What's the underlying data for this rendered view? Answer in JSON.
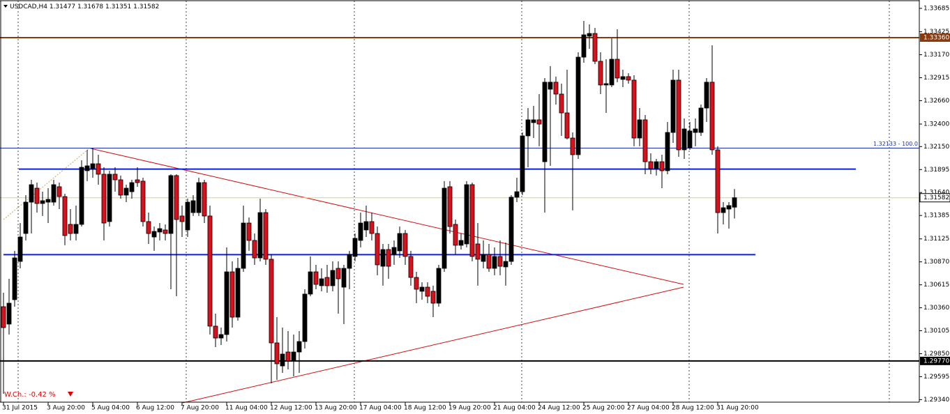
{
  "chart_data": {
    "type": "candlestick",
    "title": "USDCAD,H4",
    "annotation": "W.Ch.: -0.42 %",
    "ylim": [
      1.29312,
      1.3377
    ],
    "yticks": [
      1.33685,
      1.33425,
      {
        "value": 1.3317,
        "label": "1.33170"
      },
      1.32915,
      {
        "value": 1.3266,
        "label": "1.32660"
      },
      {
        "value": 1.324,
        "label": "1.32400"
      },
      {
        "value": 1.3215,
        "label": "1.32150"
      },
      1.31895,
      {
        "value": 1.3164,
        "label": "1.31640"
      },
      1.31385,
      1.31125,
      {
        "value": 1.3087,
        "label": "1.30870"
      },
      1.30615,
      {
        "value": 1.3036,
        "label": "1.30360"
      },
      1.30105,
      {
        "value": 1.2985,
        "label": "1.29850"
      },
      1.29595,
      {
        "value": 1.2934,
        "label": "1.29340"
      }
    ],
    "bull_color": "#000000",
    "bear_color": "#d8121c",
    "categories": [
      "31 Jul 2015",
      null,
      null,
      null,
      null,
      null,
      null,
      null,
      "3 Aug 20:00",
      null,
      null,
      null,
      null,
      null,
      null,
      null,
      "5 Aug 04:00",
      null,
      null,
      null,
      null,
      null,
      null,
      null,
      "6 Aug 12:00",
      null,
      null,
      null,
      null,
      null,
      null,
      null,
      "7 Aug 20:00",
      null,
      null,
      null,
      null,
      null,
      null,
      null,
      "11 Aug 04:00",
      null,
      null,
      null,
      null,
      null,
      null,
      null,
      "12 Aug 12:00",
      null,
      null,
      null,
      null,
      null,
      null,
      null,
      "13 Aug 20:00",
      null,
      null,
      null,
      null,
      null,
      null,
      null,
      "17 Aug 04:00",
      null,
      null,
      null,
      null,
      null,
      null,
      null,
      "18 Aug 12:00",
      null,
      null,
      null,
      null,
      null,
      null,
      null,
      "19 Aug 20:00",
      null,
      null,
      null,
      null,
      null,
      null,
      null,
      "21 Aug 04:00",
      null,
      null,
      null,
      null,
      null,
      null,
      null,
      "24 Aug 12:00",
      null,
      null,
      null,
      null,
      null,
      null,
      null,
      "25 Aug 20:00",
      null,
      null,
      null,
      null,
      null,
      null,
      null,
      "27 Aug 04:00",
      null,
      null,
      null,
      null,
      null,
      null,
      null,
      "28 Aug 12:00",
      null,
      null,
      null,
      null,
      null,
      null,
      null,
      "31 Aug 20:00",
      null,
      null,
      null
    ],
    "ohlc": [
      [
        1.30372,
        1.30527,
        1.29405,
        1.3014
      ],
      [
        1.30179,
        1.30682,
        1.30063,
        1.30411
      ],
      [
        1.3045,
        1.30992,
        1.30372,
        1.30914
      ],
      [
        1.30875,
        1.31301,
        1.30798,
        1.31146
      ],
      [
        1.31185,
        1.31611,
        1.31108,
        1.31533
      ],
      [
        1.31533,
        1.31781,
        1.31185,
        1.31727
      ],
      [
        1.31688,
        1.3175,
        1.31417,
        1.31518
      ],
      [
        1.31518,
        1.31649,
        1.31379,
        1.31549
      ],
      [
        1.31533,
        1.31688,
        1.31301,
        1.31564
      ],
      [
        1.31533,
        1.31781,
        1.31495,
        1.31727
      ],
      [
        1.31704,
        1.3175,
        1.31456,
        1.31595
      ],
      [
        1.31595,
        1.31626,
        1.31054,
        1.31162
      ],
      [
        1.31286,
        1.31456,
        1.31108,
        1.31185
      ],
      [
        1.31185,
        1.31495,
        1.31108,
        1.31286
      ],
      [
        1.31286,
        1.31998,
        1.31262,
        1.3192
      ],
      [
        1.31882,
        1.32114,
        1.31766,
        1.31936
      ],
      [
        1.31905,
        1.32137,
        1.31804,
        1.31959
      ],
      [
        1.31959,
        1.3206,
        1.31727,
        1.31843
      ],
      [
        1.31843,
        1.3192,
        1.31108,
        1.31301
      ],
      [
        1.31317,
        1.31882,
        1.31262,
        1.31843
      ],
      [
        1.31843,
        1.3192,
        1.31649,
        1.31781
      ],
      [
        1.31781,
        1.31828,
        1.31572,
        1.31611
      ],
      [
        1.31611,
        1.31727,
        1.31533,
        1.31688
      ],
      [
        1.31649,
        1.31781,
        1.31572,
        1.3175
      ],
      [
        1.31781,
        1.3192,
        1.31704,
        1.3175
      ],
      [
        1.31766,
        1.31804,
        1.31262,
        1.31317
      ],
      [
        1.31317,
        1.31417,
        1.31069,
        1.31185
      ],
      [
        1.31146,
        1.31262,
        1.30992,
        1.31208
      ],
      [
        1.31201,
        1.31301,
        1.31108,
        1.31239
      ],
      [
        1.31224,
        1.31286,
        1.31108,
        1.31185
      ],
      [
        1.31185,
        1.31843,
        1.30566,
        1.31828
      ],
      [
        1.31828,
        1.31843,
        1.30488,
        1.3134
      ],
      [
        1.31379,
        1.31495,
        1.31146,
        1.31317
      ],
      [
        1.31224,
        1.31572,
        1.31146,
        1.31533
      ],
      [
        1.31417,
        1.31611,
        1.31379,
        1.31549
      ],
      [
        1.31417,
        1.31804,
        1.31379,
        1.3175
      ],
      [
        1.3175,
        1.31781,
        1.31301,
        1.31379
      ],
      [
        1.31379,
        1.31495,
        1.30063,
        1.30156
      ],
      [
        1.30156,
        1.30295,
        1.29923,
        1.30024
      ],
      [
        1.30024,
        1.3014,
        1.29947,
        1.30063
      ],
      [
        1.30063,
        1.3103,
        1.29985,
        1.30759
      ],
      [
        1.30759,
        1.30875,
        1.3014,
        1.30256
      ],
      [
        1.30256,
        1.30914,
        1.30218,
        1.30798
      ],
      [
        1.30798,
        1.31495,
        1.30759,
        1.31301
      ],
      [
        1.31301,
        1.31363,
        1.30992,
        1.31108
      ],
      [
        1.31108,
        1.31185,
        1.30837,
        1.30914
      ],
      [
        1.30914,
        1.31572,
        1.30875,
        1.31417
      ],
      [
        1.31417,
        1.31456,
        1.30837,
        1.30899
      ],
      [
        1.30899,
        1.30953,
        1.29521,
        1.2997
      ],
      [
        1.2997,
        1.30256,
        1.2956,
        1.29738
      ],
      [
        1.29714,
        1.3014,
        1.29637,
        1.29846
      ],
      [
        1.29869,
        1.30101,
        1.29676,
        1.29769
      ],
      [
        1.29769,
        1.30063,
        1.29598,
        1.29869
      ],
      [
        1.29869,
        1.30101,
        1.29637,
        1.29985
      ],
      [
        1.29985,
        1.30566,
        1.29908,
        1.30512
      ],
      [
        1.30512,
        1.3093,
        1.30488,
        1.30759
      ],
      [
        1.30759,
        1.30837,
        1.30566,
        1.3062
      ],
      [
        1.30605,
        1.30798,
        1.30543,
        1.30682
      ],
      [
        1.30697,
        1.30837,
        1.30527,
        1.30605
      ],
      [
        1.30605,
        1.30875,
        1.30543,
        1.30775
      ],
      [
        1.30798,
        1.30875,
        1.30295,
        1.30682
      ],
      [
        1.30589,
        1.30837,
        1.30179,
        1.30798
      ],
      [
        1.30798,
        1.30992,
        1.30566,
        1.30953
      ],
      [
        1.3093,
        1.31185,
        1.30875,
        1.31131
      ],
      [
        1.31108,
        1.31417,
        1.3103,
        1.31301
      ],
      [
        1.31224,
        1.31495,
        1.31146,
        1.31317
      ],
      [
        1.31317,
        1.31417,
        1.31108,
        1.31185
      ],
      [
        1.31185,
        1.31262,
        1.30721,
        1.30837
      ],
      [
        1.30821,
        1.31069,
        1.30605,
        1.31007
      ],
      [
        1.31007,
        1.31069,
        1.30682,
        1.30821
      ],
      [
        1.30953,
        1.31108,
        1.30837,
        1.3103
      ],
      [
        1.30992,
        1.31262,
        1.30914,
        1.31185
      ],
      [
        1.31185,
        1.31224,
        1.30837,
        1.3093
      ],
      [
        1.3093,
        1.30992,
        1.30605,
        1.30697
      ],
      [
        1.30697,
        1.30759,
        1.30411,
        1.30566
      ],
      [
        1.30543,
        1.30643,
        1.3045,
        1.30589
      ],
      [
        1.30589,
        1.30643,
        1.30411,
        1.30488
      ],
      [
        1.30543,
        1.30605,
        1.30256,
        1.30411
      ],
      [
        1.30411,
        1.30837,
        1.30372,
        1.30798
      ],
      [
        1.30798,
        1.31766,
        1.30759,
        1.31688
      ],
      [
        1.31704,
        1.31766,
        1.31185,
        1.31262
      ],
      [
        1.31286,
        1.3134,
        1.30953,
        1.31054
      ],
      [
        1.31054,
        1.31185,
        1.31007,
        1.31108
      ],
      [
        1.31069,
        1.31766,
        1.3103,
        1.31727
      ],
      [
        1.31727,
        1.3175,
        1.30875,
        1.3093
      ],
      [
        1.31069,
        1.31301,
        1.30605,
        1.30899
      ],
      [
        1.30875,
        1.31108,
        1.30798,
        1.30953
      ],
      [
        1.30953,
        1.31069,
        1.30759,
        1.30798
      ],
      [
        1.30798,
        1.3103,
        1.30721,
        1.3093
      ],
      [
        1.3093,
        1.31108,
        1.30721,
        1.30821
      ],
      [
        1.30814,
        1.31084,
        1.30605,
        1.30875
      ],
      [
        1.30875,
        1.31611,
        1.30837,
        1.31588
      ],
      [
        1.31588,
        1.31804,
        1.31533,
        1.31649
      ],
      [
        1.31649,
        1.32307,
        1.31611,
        1.32269
      ],
      [
        1.32269,
        1.32578,
        1.3192,
        1.32447
      ],
      [
        1.32416,
        1.32602,
        1.32245,
        1.32447
      ],
      [
        1.32447,
        1.32733,
        1.32153,
        1.324
      ],
      [
        1.31982,
        1.32911,
        1.31417,
        1.32865
      ],
      [
        1.32787,
        1.33043,
        1.31936,
        1.32865
      ],
      [
        1.32865,
        1.32927,
        1.32617,
        1.32733
      ],
      [
        1.32733,
        1.32849,
        1.32269,
        1.32524
      ],
      [
        1.32524,
        1.33004,
        1.3223,
        1.32245
      ],
      [
        1.32245,
        1.32307,
        1.31441,
        1.3206
      ],
      [
        1.3206,
        1.33197,
        1.32013,
        1.33143
      ],
      [
        1.33143,
        1.33546,
        1.33081,
        1.33391
      ],
      [
        1.33376,
        1.33507,
        1.33236,
        1.33406
      ],
      [
        1.33406,
        1.33468,
        1.33066,
        1.33097
      ],
      [
        1.33097,
        1.33197,
        1.32733,
        1.32834
      ],
      [
        1.32834,
        1.3312,
        1.32524,
        1.32849
      ],
      [
        1.32834,
        1.33352,
        1.3281,
        1.3312
      ],
      [
        1.3312,
        1.33453,
        1.32865,
        1.32911
      ],
      [
        1.32896,
        1.33004,
        1.3281,
        1.32927
      ],
      [
        1.32927,
        1.32965,
        1.32849,
        1.32888
      ],
      [
        1.32888,
        1.32942,
        1.32153,
        1.32245
      ],
      [
        1.32245,
        1.32578,
        1.32153,
        1.32447
      ],
      [
        1.32447,
        1.32501,
        1.31843,
        1.31982
      ],
      [
        1.31982,
        1.32075,
        1.31843,
        1.31905
      ],
      [
        1.31905,
        1.32013,
        1.31828,
        1.31982
      ],
      [
        1.31982,
        1.3206,
        1.31688,
        1.31882
      ],
      [
        1.31882,
        1.32423,
        1.31843,
        1.32307
      ],
      [
        1.32307,
        1.33004,
        1.32191,
        1.32888
      ],
      [
        1.32888,
        1.33004,
        1.32036,
        1.32114
      ],
      [
        1.32114,
        1.32462,
        1.32013,
        1.32346
      ],
      [
        1.32137,
        1.32423,
        1.32114,
        1.32323
      ],
      [
        1.32307,
        1.32462,
        1.32153,
        1.32346
      ],
      [
        1.32307,
        1.32617,
        1.32269,
        1.32578
      ],
      [
        1.32578,
        1.32911,
        1.32423,
        1.32865
      ],
      [
        1.32865,
        1.33275,
        1.3206,
        1.32114
      ],
      [
        1.32114,
        1.32153,
        1.31185,
        1.31417
      ],
      [
        1.31417,
        1.31533,
        1.31286,
        1.31471
      ],
      [
        1.31456,
        1.31533,
        1.31239,
        1.31495
      ],
      [
        1.31477,
        1.31678,
        1.31351,
        1.31582
      ]
    ],
    "price_lines": [
      {
        "value": 1.3336,
        "label": "1.33360",
        "color": "#8b3a0e"
      },
      {
        "value": 1.32133,
        "label": "1.32133 - 100.0",
        "color": "#1a2fb0"
      },
      {
        "value": 1.319,
        "color": "#0a1ee6"
      },
      {
        "value": 1.3095,
        "color": "#0a1ee6"
      },
      {
        "value": 1.2977,
        "label": "1.29770",
        "color": "#000000"
      }
    ],
    "last_price_color": "#d9d27a"
  }
}
